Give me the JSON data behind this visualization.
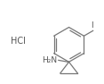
{
  "background_color": "#ffffff",
  "line_color": "#777777",
  "text_color": "#555555",
  "hcl_text": "HCl",
  "nh2_text": "H₂N",
  "iodine_text": "I",
  "figsize": [
    1.17,
    0.94
  ],
  "dpi": 100,
  "hcl_fontsize": 7.0,
  "nh2_fontsize": 6.5,
  "iodine_fontsize": 6.5
}
